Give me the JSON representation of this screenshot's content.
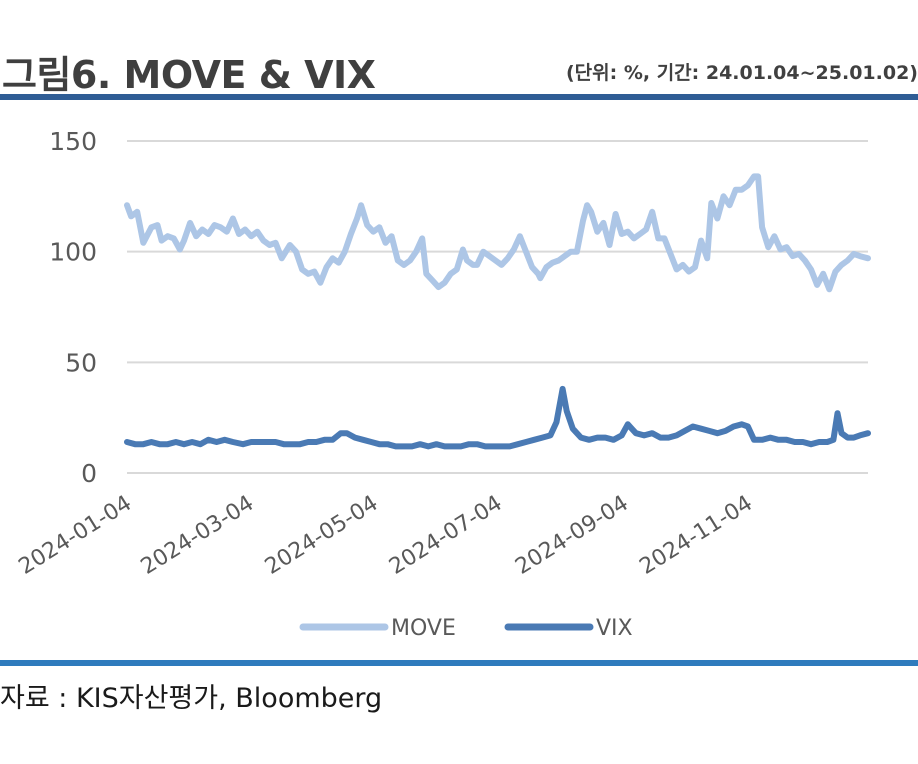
{
  "header": {
    "title": "그림6. MOVE & VIX",
    "unit_note": "(단위: %, 기간: 24.01.04~25.01.02)"
  },
  "footer": {
    "source": "자료 : KIS자산평가, Bloomberg"
  },
  "colors": {
    "move": "#adc6e6",
    "vix": "#4a7ab4",
    "grid": "#d9d9d9",
    "rule": "#2f5d95"
  },
  "chart_data": {
    "type": "line",
    "title": "",
    "xlabel": "",
    "ylabel": "",
    "ylim": [
      0,
      150
    ],
    "yticks": [
      "0",
      "50",
      "100",
      "150"
    ],
    "xticks": [
      "2024-01-04",
      "2024-03-04",
      "2024-05-04",
      "2024-07-04",
      "2024-09-04",
      "2024-11-04"
    ],
    "grid": "horizontal",
    "legend": "bottom",
    "x_start": "2024-01-04",
    "x_end": "2025-01-02",
    "series": [
      {
        "name": "MOVE",
        "points": [
          [
            "2024-01-04",
            121
          ],
          [
            "2024-01-06",
            116
          ],
          [
            "2024-01-09",
            118
          ],
          [
            "2024-01-12",
            104
          ],
          [
            "2024-01-16",
            111
          ],
          [
            "2024-01-19",
            112
          ],
          [
            "2024-01-21",
            105
          ],
          [
            "2024-01-24",
            107
          ],
          [
            "2024-01-27",
            106
          ],
          [
            "2024-01-30",
            101
          ],
          [
            "2024-02-01",
            105
          ],
          [
            "2024-02-04",
            113
          ],
          [
            "2024-02-07",
            107
          ],
          [
            "2024-02-10",
            110
          ],
          [
            "2024-02-13",
            108
          ],
          [
            "2024-02-16",
            112
          ],
          [
            "2024-02-19",
            111
          ],
          [
            "2024-02-22",
            109
          ],
          [
            "2024-02-25",
            115
          ],
          [
            "2024-02-28",
            108
          ],
          [
            "2024-03-02",
            110
          ],
          [
            "2024-03-05",
            107
          ],
          [
            "2024-03-08",
            109
          ],
          [
            "2024-03-11",
            105
          ],
          [
            "2024-03-14",
            103
          ],
          [
            "2024-03-17",
            104
          ],
          [
            "2024-03-20",
            97
          ],
          [
            "2024-03-24",
            103
          ],
          [
            "2024-03-27",
            100
          ],
          [
            "2024-03-30",
            92
          ],
          [
            "2024-04-02",
            90
          ],
          [
            "2024-04-05",
            91
          ],
          [
            "2024-04-08",
            86
          ],
          [
            "2024-04-11",
            93
          ],
          [
            "2024-04-14",
            97
          ],
          [
            "2024-04-17",
            95
          ],
          [
            "2024-04-20",
            100
          ],
          [
            "2024-04-23",
            108
          ],
          [
            "2024-04-26",
            115
          ],
          [
            "2024-04-28",
            121
          ],
          [
            "2024-05-01",
            112
          ],
          [
            "2024-05-04",
            109
          ],
          [
            "2024-05-07",
            111
          ],
          [
            "2024-05-10",
            104
          ],
          [
            "2024-05-13",
            107
          ],
          [
            "2024-05-16",
            96
          ],
          [
            "2024-05-19",
            94
          ],
          [
            "2024-05-22",
            96
          ],
          [
            "2024-05-25",
            100
          ],
          [
            "2024-05-28",
            106
          ],
          [
            "2024-05-30",
            90
          ],
          [
            "2024-06-02",
            87
          ],
          [
            "2024-06-05",
            84
          ],
          [
            "2024-06-08",
            86
          ],
          [
            "2024-06-11",
            90
          ],
          [
            "2024-06-14",
            92
          ],
          [
            "2024-06-17",
            101
          ],
          [
            "2024-06-19",
            96
          ],
          [
            "2024-06-22",
            94
          ],
          [
            "2024-06-24",
            94
          ],
          [
            "2024-06-27",
            100
          ],
          [
            "2024-06-30",
            98
          ],
          [
            "2024-07-03",
            96
          ],
          [
            "2024-07-06",
            94
          ],
          [
            "2024-07-09",
            97
          ],
          [
            "2024-07-12",
            101
          ],
          [
            "2024-07-15",
            107
          ],
          [
            "2024-07-18",
            100
          ],
          [
            "2024-07-21",
            93
          ],
          [
            "2024-07-24",
            90
          ],
          [
            "2024-07-25",
            88
          ],
          [
            "2024-07-28",
            93
          ],
          [
            "2024-07-31",
            95
          ],
          [
            "2024-08-03",
            96
          ],
          [
            "2024-08-06",
            98
          ],
          [
            "2024-08-09",
            100
          ],
          [
            "2024-08-12",
            100
          ],
          [
            "2024-08-15",
            114
          ],
          [
            "2024-08-17",
            121
          ],
          [
            "2024-08-19",
            118
          ],
          [
            "2024-08-22",
            109
          ],
          [
            "2024-08-25",
            113
          ],
          [
            "2024-08-28",
            103
          ],
          [
            "2024-08-31",
            117
          ],
          [
            "2024-09-03",
            108
          ],
          [
            "2024-09-06",
            109
          ],
          [
            "2024-09-09",
            106
          ],
          [
            "2024-09-12",
            108
          ],
          [
            "2024-09-15",
            110
          ],
          [
            "2024-09-18",
            118
          ],
          [
            "2024-09-21",
            106
          ],
          [
            "2024-09-24",
            106
          ],
          [
            "2024-09-27",
            99
          ],
          [
            "2024-09-30",
            92
          ],
          [
            "2024-10-03",
            94
          ],
          [
            "2024-10-06",
            91
          ],
          [
            "2024-10-09",
            93
          ],
          [
            "2024-10-12",
            105
          ],
          [
            "2024-10-15",
            97
          ],
          [
            "2024-10-17",
            122
          ],
          [
            "2024-10-20",
            115
          ],
          [
            "2024-10-23",
            125
          ],
          [
            "2024-10-26",
            121
          ],
          [
            "2024-10-29",
            128
          ],
          [
            "2024-11-01",
            128
          ],
          [
            "2024-11-04",
            130
          ],
          [
            "2024-11-07",
            134
          ],
          [
            "2024-11-09",
            134
          ],
          [
            "2024-11-11",
            111
          ],
          [
            "2024-11-14",
            102
          ],
          [
            "2024-11-17",
            107
          ],
          [
            "2024-11-20",
            101
          ],
          [
            "2024-11-23",
            102
          ],
          [
            "2024-11-26",
            98
          ],
          [
            "2024-11-29",
            99
          ],
          [
            "2024-12-02",
            96
          ],
          [
            "2024-12-05",
            92
          ],
          [
            "2024-12-08",
            85
          ],
          [
            "2024-12-11",
            90
          ],
          [
            "2024-12-14",
            83
          ],
          [
            "2024-12-17",
            91
          ],
          [
            "2024-12-20",
            94
          ],
          [
            "2024-12-23",
            96
          ],
          [
            "2024-12-26",
            99
          ],
          [
            "2024-12-29",
            98
          ],
          [
            "2025-01-02",
            97
          ]
        ]
      },
      {
        "name": "VIX",
        "points": [
          [
            "2024-01-04",
            14
          ],
          [
            "2024-01-08",
            13
          ],
          [
            "2024-01-12",
            13
          ],
          [
            "2024-01-16",
            14
          ],
          [
            "2024-01-20",
            13
          ],
          [
            "2024-01-24",
            13
          ],
          [
            "2024-01-28",
            14
          ],
          [
            "2024-02-01",
            13
          ],
          [
            "2024-02-05",
            14
          ],
          [
            "2024-02-09",
            13
          ],
          [
            "2024-02-13",
            15
          ],
          [
            "2024-02-17",
            14
          ],
          [
            "2024-02-21",
            15
          ],
          [
            "2024-02-25",
            14
          ],
          [
            "2024-03-01",
            13
          ],
          [
            "2024-03-05",
            14
          ],
          [
            "2024-03-09",
            14
          ],
          [
            "2024-03-13",
            14
          ],
          [
            "2024-03-17",
            14
          ],
          [
            "2024-03-21",
            13
          ],
          [
            "2024-03-25",
            13
          ],
          [
            "2024-03-29",
            13
          ],
          [
            "2024-04-02",
            14
          ],
          [
            "2024-04-06",
            14
          ],
          [
            "2024-04-10",
            15
          ],
          [
            "2024-04-14",
            15
          ],
          [
            "2024-04-18",
            18
          ],
          [
            "2024-04-21",
            18
          ],
          [
            "2024-04-25",
            16
          ],
          [
            "2024-04-29",
            15
          ],
          [
            "2024-05-03",
            14
          ],
          [
            "2024-05-07",
            13
          ],
          [
            "2024-05-11",
            13
          ],
          [
            "2024-05-15",
            12
          ],
          [
            "2024-05-19",
            12
          ],
          [
            "2024-05-23",
            12
          ],
          [
            "2024-05-27",
            13
          ],
          [
            "2024-05-31",
            12
          ],
          [
            "2024-06-04",
            13
          ],
          [
            "2024-06-08",
            12
          ],
          [
            "2024-06-12",
            12
          ],
          [
            "2024-06-16",
            12
          ],
          [
            "2024-06-20",
            13
          ],
          [
            "2024-06-24",
            13
          ],
          [
            "2024-06-28",
            12
          ],
          [
            "2024-07-02",
            12
          ],
          [
            "2024-07-06",
            12
          ],
          [
            "2024-07-10",
            12
          ],
          [
            "2024-07-14",
            13
          ],
          [
            "2024-07-18",
            14
          ],
          [
            "2024-07-22",
            15
          ],
          [
            "2024-07-26",
            16
          ],
          [
            "2024-07-30",
            17
          ],
          [
            "2024-08-02",
            23
          ],
          [
            "2024-08-05",
            38
          ],
          [
            "2024-08-07",
            28
          ],
          [
            "2024-08-10",
            20
          ],
          [
            "2024-08-14",
            16
          ],
          [
            "2024-08-18",
            15
          ],
          [
            "2024-08-22",
            16
          ],
          [
            "2024-08-26",
            16
          ],
          [
            "2024-08-30",
            15
          ],
          [
            "2024-09-03",
            17
          ],
          [
            "2024-09-06",
            22
          ],
          [
            "2024-09-10",
            18
          ],
          [
            "2024-09-14",
            17
          ],
          [
            "2024-09-18",
            18
          ],
          [
            "2024-09-22",
            16
          ],
          [
            "2024-09-26",
            16
          ],
          [
            "2024-09-30",
            17
          ],
          [
            "2024-10-04",
            19
          ],
          [
            "2024-10-08",
            21
          ],
          [
            "2024-10-12",
            20
          ],
          [
            "2024-10-16",
            19
          ],
          [
            "2024-10-20",
            18
          ],
          [
            "2024-10-24",
            19
          ],
          [
            "2024-10-28",
            21
          ],
          [
            "2024-11-01",
            22
          ],
          [
            "2024-11-04",
            21
          ],
          [
            "2024-11-07",
            15
          ],
          [
            "2024-11-11",
            15
          ],
          [
            "2024-11-15",
            16
          ],
          [
            "2024-11-19",
            15
          ],
          [
            "2024-11-23",
            15
          ],
          [
            "2024-11-27",
            14
          ],
          [
            "2024-12-01",
            14
          ],
          [
            "2024-12-05",
            13
          ],
          [
            "2024-12-09",
            14
          ],
          [
            "2024-12-13",
            14
          ],
          [
            "2024-12-16",
            15
          ],
          [
            "2024-12-18",
            27
          ],
          [
            "2024-12-20",
            18
          ],
          [
            "2024-12-23",
            16
          ],
          [
            "2024-12-26",
            16
          ],
          [
            "2024-12-29",
            17
          ],
          [
            "2025-01-02",
            18
          ]
        ]
      }
    ]
  }
}
